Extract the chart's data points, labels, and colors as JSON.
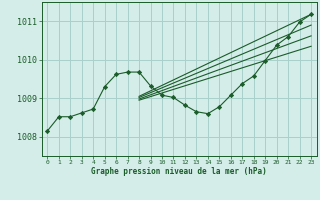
{
  "background_color": "#d4ede8",
  "grid_color": "#a8d0ca",
  "line_color": "#1a5c2a",
  "marker_color": "#1a5c2a",
  "xlabel": "Graphe pression niveau de la mer (hPa)",
  "xlim": [
    -0.5,
    23.5
  ],
  "ylim": [
    1007.5,
    1011.5
  ],
  "yticks": [
    1008,
    1009,
    1010,
    1011
  ],
  "xticks": [
    0,
    1,
    2,
    3,
    4,
    5,
    6,
    7,
    8,
    9,
    10,
    11,
    12,
    13,
    14,
    15,
    16,
    17,
    18,
    19,
    20,
    21,
    22,
    23
  ],
  "main_line": [
    [
      0,
      1008.15
    ],
    [
      1,
      1008.52
    ],
    [
      2,
      1008.52
    ],
    [
      3,
      1008.62
    ],
    [
      4,
      1008.72
    ],
    [
      5,
      1009.3
    ],
    [
      6,
      1009.62
    ],
    [
      7,
      1009.68
    ],
    [
      8,
      1009.68
    ],
    [
      9,
      1009.32
    ],
    [
      10,
      1009.08
    ],
    [
      11,
      1009.02
    ],
    [
      12,
      1008.82
    ],
    [
      13,
      1008.65
    ],
    [
      14,
      1008.6
    ],
    [
      15,
      1008.78
    ],
    [
      16,
      1009.08
    ],
    [
      17,
      1009.38
    ],
    [
      18,
      1009.58
    ],
    [
      19,
      1009.98
    ],
    [
      20,
      1010.38
    ],
    [
      21,
      1010.6
    ],
    [
      22,
      1010.98
    ],
    [
      23,
      1011.18
    ]
  ],
  "forecast_lines": [
    [
      [
        8,
        1009.05
      ],
      [
        23,
        1011.18
      ]
    ],
    [
      [
        8,
        1009.02
      ],
      [
        23,
        1010.9
      ]
    ],
    [
      [
        8,
        1008.98
      ],
      [
        23,
        1010.62
      ]
    ],
    [
      [
        8,
        1008.95
      ],
      [
        23,
        1010.35
      ]
    ]
  ]
}
